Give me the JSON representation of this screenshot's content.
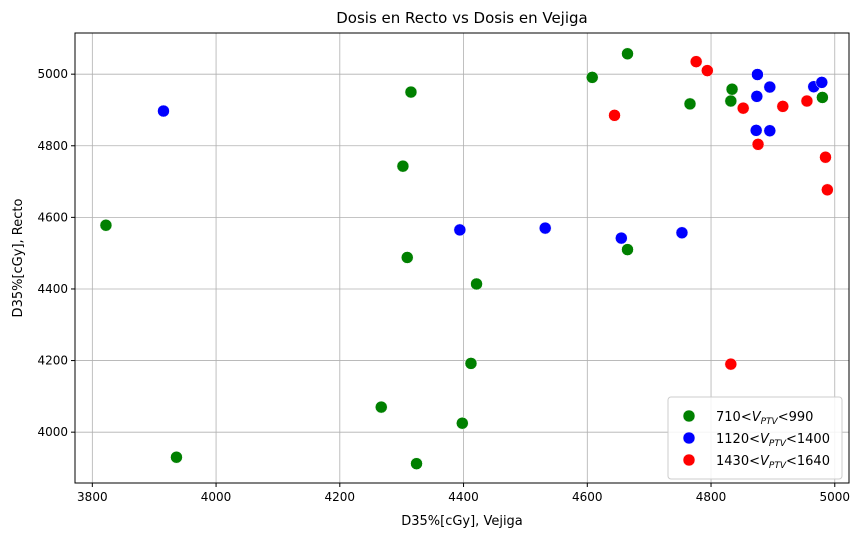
{
  "chart_data": {
    "type": "scatter",
    "title": "Dosis en Recto vs Dosis en Vejiga",
    "xlabel": "D35%[cGy], Vejiga",
    "ylabel": "D35%[cGy], Recto",
    "xlim": [
      3772,
      5023
    ],
    "ylim": [
      3858,
      5115
    ],
    "xticks": [
      3800,
      4000,
      4200,
      4400,
      4600,
      4800,
      5000
    ],
    "yticks": [
      4000,
      4200,
      4400,
      4600,
      4800,
      5000
    ],
    "grid": true,
    "legend_position": "lower-right",
    "series": [
      {
        "name": "710<V_PTV<990",
        "legend_parts": [
          "710<",
          "V",
          "PTV",
          "<990"
        ],
        "color": "#008000",
        "points": [
          {
            "x": 3822,
            "y": 4578
          },
          {
            "x": 3936,
            "y": 3930
          },
          {
            "x": 4267,
            "y": 4070
          },
          {
            "x": 4302,
            "y": 4743
          },
          {
            "x": 4309,
            "y": 4488
          },
          {
            "x": 4315,
            "y": 4950
          },
          {
            "x": 4324,
            "y": 3912
          },
          {
            "x": 4398,
            "y": 4025
          },
          {
            "x": 4412,
            "y": 4192
          },
          {
            "x": 4421,
            "y": 4414
          },
          {
            "x": 4608,
            "y": 4991
          },
          {
            "x": 4665,
            "y": 5057
          },
          {
            "x": 4665,
            "y": 4510
          },
          {
            "x": 4766,
            "y": 4917
          },
          {
            "x": 4832,
            "y": 4925
          },
          {
            "x": 4834,
            "y": 4958
          },
          {
            "x": 4980,
            "y": 4935
          }
        ]
      },
      {
        "name": "1120<V_PTV<1400",
        "legend_parts": [
          "1120<",
          "V",
          "PTV",
          "<1400"
        ],
        "color": "#0000ff",
        "points": [
          {
            "x": 3915,
            "y": 4897
          },
          {
            "x": 4394,
            "y": 4565
          },
          {
            "x": 4532,
            "y": 4570
          },
          {
            "x": 4655,
            "y": 4542
          },
          {
            "x": 4753,
            "y": 4557
          },
          {
            "x": 4873,
            "y": 4843
          },
          {
            "x": 4874,
            "y": 4938
          },
          {
            "x": 4875,
            "y": 4999
          },
          {
            "x": 4895,
            "y": 4842
          },
          {
            "x": 4895,
            "y": 4964
          },
          {
            "x": 4966,
            "y": 4965
          },
          {
            "x": 4979,
            "y": 4977
          }
        ]
      },
      {
        "name": "1430<V_PTV<1640",
        "legend_parts": [
          "1430<",
          "V",
          "PTV",
          "<1640"
        ],
        "color": "#ff0000",
        "points": [
          {
            "x": 4644,
            "y": 4885
          },
          {
            "x": 4776,
            "y": 5035
          },
          {
            "x": 4794,
            "y": 5010
          },
          {
            "x": 4832,
            "y": 4190
          },
          {
            "x": 4852,
            "y": 4905
          },
          {
            "x": 4876,
            "y": 4804
          },
          {
            "x": 4916,
            "y": 4910
          },
          {
            "x": 4955,
            "y": 4925
          },
          {
            "x": 4985,
            "y": 4768
          },
          {
            "x": 4988,
            "y": 4677
          }
        ]
      }
    ]
  }
}
